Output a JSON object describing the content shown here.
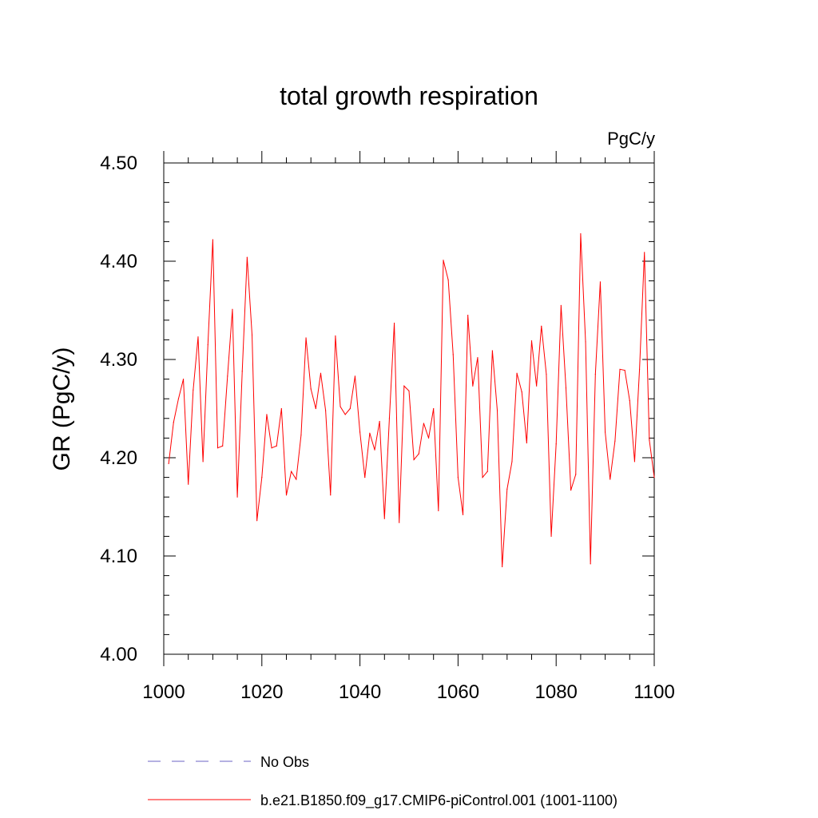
{
  "chart_data": {
    "type": "line",
    "title": "total growth respiration",
    "units": "PgC/y",
    "ylabel": "GR  (PgC/y)",
    "xlabel": "",
    "xlim": [
      1000,
      1100
    ],
    "ylim": [
      4.0,
      4.5
    ],
    "x_ticks": [
      1000,
      1020,
      1040,
      1060,
      1080,
      1100
    ],
    "x_tick_labels": [
      "1000",
      "1020",
      "1040",
      "1060",
      "1080",
      "1100"
    ],
    "y_ticks": [
      4.0,
      4.1,
      4.2,
      4.3,
      4.4,
      4.5
    ],
    "y_tick_labels": [
      "4.00",
      "4.10",
      "4.20",
      "4.30",
      "4.40",
      "4.50"
    ],
    "grid": false,
    "legend_position": "bottom",
    "legend": [
      {
        "label": "No Obs",
        "color": "#6b63c6",
        "dash": "dashed"
      },
      {
        "label": "b.e21.B1850.f09_g17.CMIP6-piControl.001 (1001-1100)",
        "color": "#ff0000",
        "dash": "solid"
      }
    ],
    "series": [
      {
        "name": "b.e21.B1850.f09_g17.CMIP6-piControl.001 (1001-1100)",
        "color": "#ff0000",
        "x": [
          1001,
          1002,
          1003,
          1004,
          1005,
          1006,
          1007,
          1008,
          1009,
          1010,
          1011,
          1012,
          1013,
          1014,
          1015,
          1016,
          1017,
          1018,
          1019,
          1020,
          1021,
          1022,
          1023,
          1024,
          1025,
          1026,
          1027,
          1028,
          1029,
          1030,
          1031,
          1032,
          1033,
          1034,
          1035,
          1036,
          1037,
          1038,
          1039,
          1040,
          1041,
          1042,
          1043,
          1044,
          1045,
          1046,
          1047,
          1048,
          1049,
          1050,
          1051,
          1052,
          1053,
          1054,
          1055,
          1056,
          1057,
          1058,
          1059,
          1060,
          1061,
          1062,
          1063,
          1064,
          1065,
          1066,
          1067,
          1068,
          1069,
          1070,
          1071,
          1072,
          1073,
          1074,
          1075,
          1076,
          1077,
          1078,
          1079,
          1080,
          1081,
          1082,
          1083,
          1084,
          1085,
          1086,
          1087,
          1088,
          1089,
          1090,
          1091,
          1092,
          1093,
          1094,
          1095,
          1096,
          1097,
          1098,
          1099,
          1100
        ],
        "values": [
          4.194,
          4.236,
          4.26,
          4.28,
          4.173,
          4.269,
          4.323,
          4.196,
          4.315,
          4.422,
          4.21,
          4.212,
          4.283,
          4.351,
          4.16,
          4.288,
          4.404,
          4.325,
          4.136,
          4.18,
          4.244,
          4.21,
          4.212,
          4.25,
          4.162,
          4.186,
          4.178,
          4.223,
          4.322,
          4.27,
          4.25,
          4.286,
          4.248,
          4.162,
          4.324,
          4.252,
          4.244,
          4.25,
          4.283,
          4.226,
          4.18,
          4.225,
          4.208,
          4.237,
          4.138,
          4.24,
          4.337,
          4.134,
          4.273,
          4.268,
          4.198,
          4.204,
          4.235,
          4.22,
          4.25,
          4.146,
          4.401,
          4.381,
          4.305,
          4.18,
          4.142,
          4.345,
          4.273,
          4.302,
          4.18,
          4.186,
          4.309,
          4.248,
          4.089,
          4.168,
          4.196,
          4.286,
          4.267,
          4.215,
          4.319,
          4.273,
          4.334,
          4.285,
          4.12,
          4.214,
          4.355,
          4.271,
          4.167,
          4.183,
          4.428,
          4.318,
          4.092,
          4.285,
          4.379,
          4.226,
          4.178,
          4.217,
          4.29,
          4.289,
          4.258,
          4.196,
          4.29,
          4.409,
          4.218,
          4.18
        ]
      }
    ]
  }
}
